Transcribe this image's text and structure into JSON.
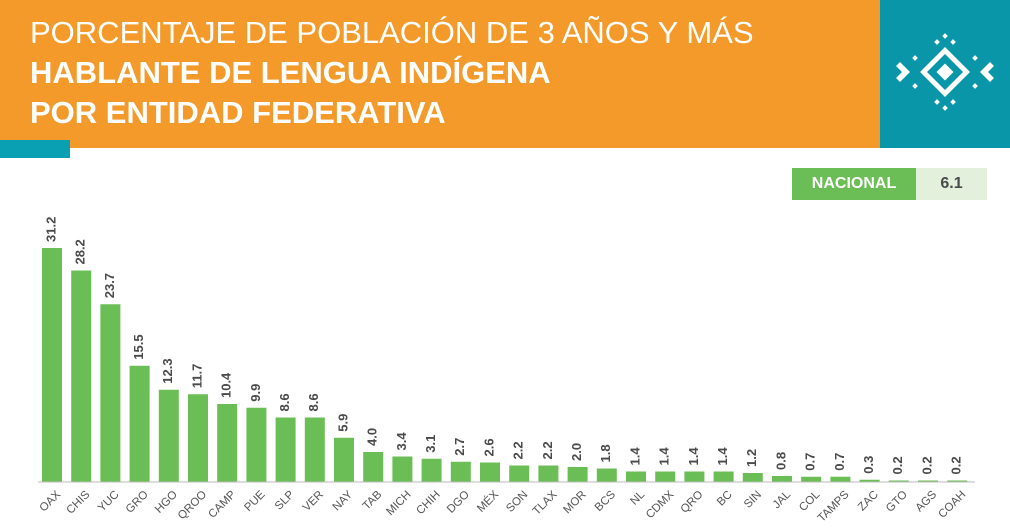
{
  "header": {
    "title_line1": "PORCENTAJE DE POBLACIÓN DE 3 AÑOS Y MÁS",
    "title_line2": "HABLANTE DE LENGUA INDÍGENA",
    "title_line3": "POR ENTIDAD FEDERATIVA",
    "logo_icon": "diamond-pattern-icon"
  },
  "national": {
    "label": "NACIONAL",
    "value": "6.1"
  },
  "colors": {
    "orange": "#F39A2B",
    "teal": "#0896A8",
    "bar": "#6BBD55",
    "national_bg": "#E3F0DC"
  },
  "chart_data": {
    "type": "bar",
    "title": "",
    "xlabel": "",
    "ylabel": "",
    "ylim": [
      0,
      31.2
    ],
    "grid": false,
    "categories": [
      "OAX",
      "CHIS",
      "YUC",
      "GRO",
      "HGO",
      "QROO",
      "CAMP",
      "PUE",
      "SLP",
      "VER",
      "NAY",
      "TAB",
      "MICH",
      "CHIH",
      "DGO",
      "MÉX",
      "SON",
      "TLAX",
      "MOR",
      "BCS",
      "NL",
      "CDMX",
      "QRO",
      "BC",
      "SIN",
      "JAL",
      "COL",
      "TAMPS",
      "ZAC",
      "GTO",
      "AGS",
      "COAH"
    ],
    "values": [
      31.2,
      28.2,
      23.7,
      15.5,
      12.3,
      11.7,
      10.4,
      9.9,
      8.6,
      8.6,
      5.9,
      4.0,
      3.4,
      3.1,
      2.7,
      2.6,
      2.2,
      2.2,
      2.0,
      1.8,
      1.4,
      1.4,
      1.4,
      1.4,
      1.2,
      0.8,
      0.7,
      0.7,
      0.3,
      0.2,
      0.2,
      0.2
    ],
    "labels": [
      "31.2",
      "28.2",
      "23.7",
      "15.5",
      "12.3",
      "11.7",
      "10.4",
      "9.9",
      "8.6",
      "8.6",
      "5.9",
      "4.0",
      "3.4",
      "3.1",
      "2.7",
      "2.6",
      "2.2",
      "2.2",
      "2.0",
      "1.8",
      "1.4",
      "1.4",
      "1.4",
      "1.4",
      "1.2",
      "0.8",
      "0.7",
      "0.7",
      "0.3",
      "0.2",
      "0.2",
      "0.2"
    ]
  }
}
